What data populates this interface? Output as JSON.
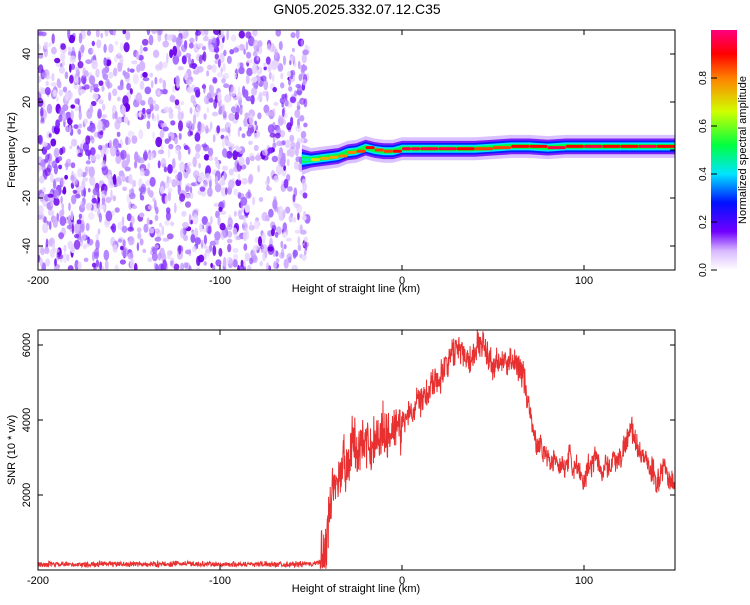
{
  "title": "GN05.2025.332.07.12.C35",
  "chart_data": [
    {
      "type": "heatmap",
      "xlabel": "Height of straight line (km)",
      "ylabel": "Frequency (Hz)",
      "xlim": [
        -200,
        150
      ],
      "ylim": [
        -50,
        50
      ],
      "x_ticks": [
        -200,
        -100,
        0,
        100
      ],
      "x_tick_labels": [
        "-200",
        "-100",
        "0",
        "100"
      ],
      "y_ticks": [
        -40,
        -20,
        0,
        20,
        40
      ],
      "y_tick_labels": [
        "-40",
        "-20",
        "0",
        "20",
        "40"
      ],
      "colorbar": {
        "label": "Normalized spectral amplitude",
        "range": [
          0,
          1
        ],
        "ticks": [
          0,
          0.2,
          0.4,
          0.6,
          0.8
        ],
        "tick_labels": [
          "0.0",
          "0.2",
          "0.4",
          "0.6",
          "0.8"
        ],
        "colors": [
          "#ffffff",
          "#7000ff",
          "#0000ff",
          "#00e5ff",
          "#00ff40",
          "#d0ff00",
          "#ff8000",
          "#ff0000",
          "#ff0080"
        ]
      },
      "noise_region": {
        "x_range": [
          -200,
          -55
        ],
        "freq_range": [
          -50,
          50
        ],
        "amplitude": 0.15
      },
      "ridge": {
        "x": [
          -55,
          -50,
          -45,
          -40,
          -35,
          -30,
          -25,
          -20,
          -15,
          -10,
          -5,
          0,
          5,
          10,
          20,
          30,
          40,
          50,
          60,
          70,
          80,
          90,
          100,
          110,
          120,
          130,
          140,
          150
        ],
        "freq": [
          -4,
          -4,
          -3.5,
          -3,
          -2.5,
          -1,
          -0.5,
          1,
          0,
          -0.5,
          -0.5,
          0.5,
          0.5,
          0.5,
          0.5,
          0.5,
          0.5,
          1,
          1.5,
          1.5,
          1,
          1.5,
          1.5,
          1.5,
          1.5,
          1.5,
          1.5,
          1.5
        ],
        "amplitude": [
          0.45,
          0.7,
          0.75,
          0.75,
          0.8,
          0.8,
          0.85,
          0.9,
          0.85,
          0.85,
          0.9,
          0.95,
          0.95,
          0.95,
          0.95,
          0.9,
          0.85,
          0.85,
          0.9,
          0.9,
          0.95,
          0.9,
          0.95,
          0.9,
          0.9,
          0.95,
          0.9,
          0.9
        ],
        "width_hz": [
          4,
          3,
          3,
          3,
          3,
          3,
          3,
          3,
          3,
          3,
          3,
          3,
          3,
          3,
          3,
          3,
          3,
          3,
          3,
          3,
          3,
          3,
          3,
          3,
          3,
          3,
          3,
          3
        ]
      }
    },
    {
      "type": "line",
      "xlabel": "Height of straight line (km)",
      "ylabel": "SNR (10 * v/v)",
      "xlim": [
        -200,
        150
      ],
      "ylim": [
        0,
        6400
      ],
      "x_ticks": [
        -200,
        -100,
        0,
        100
      ],
      "x_tick_labels": [
        "-200",
        "-100",
        "0",
        "100"
      ],
      "y_ticks": [
        2000,
        4000,
        6000
      ],
      "y_tick_labels": [
        "2000",
        "4000",
        "6000"
      ],
      "series": [
        {
          "name": "SNR",
          "color": "#e83030",
          "x": [
            -200,
            -180,
            -160,
            -140,
            -120,
            -100,
            -80,
            -60,
            -50,
            -45,
            -42,
            -40,
            -38,
            -36,
            -34,
            -32,
            -30,
            -28,
            -26,
            -24,
            -22,
            -20,
            -18,
            -16,
            -14,
            -12,
            -10,
            -8,
            -6,
            -4,
            -2,
            0,
            2,
            4,
            6,
            8,
            10,
            12,
            14,
            16,
            18,
            20,
            22,
            24,
            26,
            28,
            30,
            32,
            34,
            36,
            38,
            40,
            42,
            44,
            46,
            48,
            50,
            52,
            54,
            56,
            58,
            60,
            62,
            64,
            66,
            68,
            70,
            72,
            74,
            76,
            78,
            80,
            82,
            84,
            86,
            88,
            90,
            92,
            94,
            96,
            98,
            100,
            102,
            104,
            106,
            108,
            110,
            112,
            114,
            116,
            118,
            120,
            122,
            124,
            126,
            128,
            130,
            132,
            134,
            136,
            138,
            140,
            142,
            144,
            146,
            148,
            150
          ],
          "y": [
            150,
            140,
            160,
            150,
            170,
            150,
            160,
            150,
            160,
            200,
            500,
            1500,
            2200,
            2600,
            2400,
            3000,
            2800,
            3200,
            3400,
            3100,
            3500,
            3200,
            3300,
            3400,
            3600,
            3500,
            3800,
            3600,
            3900,
            3700,
            3800,
            3900,
            4000,
            4300,
            4200,
            4600,
            4500,
            4800,
            4700,
            5000,
            5100,
            5000,
            5300,
            5500,
            5600,
            5800,
            6000,
            5900,
            5800,
            5700,
            5600,
            5900,
            6000,
            6000,
            5900,
            5600,
            5400,
            5500,
            5500,
            5600,
            5400,
            5600,
            5500,
            5500,
            5300,
            4800,
            4200,
            3800,
            3300,
            3400,
            3100,
            3000,
            2800,
            3000,
            2700,
            2800,
            2600,
            3100,
            2700,
            2800,
            2500,
            2200,
            2800,
            2700,
            3100,
            2900,
            2500,
            2900,
            2700,
            3000,
            2900,
            3000,
            3300,
            3500,
            3800,
            3400,
            3300,
            2900,
            3100,
            2600,
            2700,
            2300,
            2500,
            2800,
            2500,
            2400,
            2300
          ]
        }
      ]
    }
  ]
}
